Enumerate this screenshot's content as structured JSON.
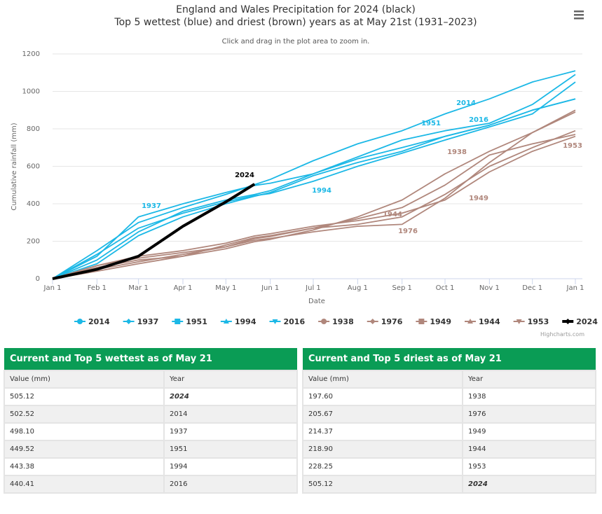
{
  "chart_data": {
    "type": "line",
    "title": [
      "England and Wales Precipitation for 2024 (black)",
      "Top 5 wettest (blue) and driest (brown) years as at May 21st (1931–2023)"
    ],
    "subtitle": "Click and drag in the plot area to zoom in.",
    "x_label": "Date",
    "y_label": "Cumulative rainfall (mm)",
    "x": [
      0,
      31,
      60,
      91,
      121,
      141,
      152,
      182,
      213,
      244,
      274,
      305,
      335,
      365
    ],
    "xlim": [
      0,
      365
    ],
    "xticks": [
      {
        "value": 0,
        "label": "Jan 1"
      },
      {
        "value": 31,
        "label": "Feb 1"
      },
      {
        "value": 60,
        "label": "Mar 1"
      },
      {
        "value": 91,
        "label": "Apr 1"
      },
      {
        "value": 121,
        "label": "May 1"
      },
      {
        "value": 152,
        "label": "Jun 1"
      },
      {
        "value": 182,
        "label": "Jul 1"
      },
      {
        "value": 213,
        "label": "Aug 1"
      },
      {
        "value": 244,
        "label": "Sep 1"
      },
      {
        "value": 274,
        "label": "Oct 1"
      },
      {
        "value": 305,
        "label": "Nov 1"
      },
      {
        "value": 335,
        "label": "Dec 1"
      },
      {
        "value": 365,
        "label": "Jan 1"
      }
    ],
    "ylim": [
      0,
      1200
    ],
    "yticks": [
      0,
      200,
      400,
      600,
      800,
      1000,
      1200
    ],
    "grid": true,
    "series": [
      {
        "name": "2014",
        "color": "#1cb8e6",
        "symbol": "circle",
        "values": [
          0,
          150,
          300,
          380,
          450,
          502.52,
          530,
          630,
          720,
          790,
          880,
          960,
          1050,
          1110
        ]
      },
      {
        "name": "1937",
        "color": "#1cb8e6",
        "symbol": "diamond",
        "values": [
          0,
          120,
          330,
          400,
          460,
          498.1,
          510,
          560,
          640,
          700,
          760,
          820,
          900,
          960
        ]
      },
      {
        "name": "1951",
        "color": "#1cb8e6",
        "symbol": "square",
        "values": [
          0,
          100,
          250,
          360,
          420,
          449.52,
          470,
          560,
          650,
          740,
          790,
          830,
          930,
          1090
        ]
      },
      {
        "name": "1994",
        "color": "#1cb8e6",
        "symbol": "triangle",
        "values": [
          0,
          130,
          270,
          350,
          410,
          443.38,
          455,
          520,
          600,
          670,
          740,
          810,
          880,
          1050
        ]
      },
      {
        "name": "2016",
        "color": "#1cb8e6",
        "symbol": "triangle-down",
        "values": [
          0,
          80,
          230,
          330,
          400,
          440.41,
          460,
          550,
          620,
          680,
          760,
          820,
          900,
          960
        ]
      },
      {
        "name": "1938",
        "color": "#b0877c",
        "symbol": "circle",
        "values": [
          0,
          60,
          100,
          120,
          160,
          197.6,
          210,
          260,
          330,
          420,
          560,
          680,
          780,
          890
        ]
      },
      {
        "name": "1976",
        "color": "#b0877c",
        "symbol": "diamond",
        "values": [
          0,
          70,
          110,
          140,
          170,
          205.67,
          215,
          250,
          280,
          290,
          430,
          620,
          780,
          900
        ]
      },
      {
        "name": "1949",
        "color": "#b0877c",
        "symbol": "square",
        "values": [
          0,
          50,
          90,
          130,
          170,
          214.37,
          225,
          270,
          290,
          330,
          450,
          600,
          700,
          790
        ]
      },
      {
        "name": "1944",
        "color": "#b0877c",
        "symbol": "triangle",
        "values": [
          0,
          40,
          80,
          120,
          180,
          218.9,
          230,
          270,
          320,
          380,
          500,
          660,
          720,
          770
        ]
      },
      {
        "name": "1953",
        "color": "#b0877c",
        "symbol": "triangle-down",
        "values": [
          0,
          70,
          120,
          150,
          190,
          228.25,
          240,
          280,
          310,
          350,
          420,
          570,
          680,
          760
        ]
      },
      {
        "name": "2024",
        "color": "#000000",
        "symbol": "diamond",
        "values": [
          0,
          50,
          120,
          280,
          410,
          505.12,
          null,
          null,
          null,
          null,
          null,
          null,
          null,
          null
        ]
      }
    ],
    "credit": "Highcharts.com"
  },
  "tables": [
    {
      "title": "Current and Top 5 wettest as of May 21",
      "columns": [
        "Value (mm)",
        "Year"
      ],
      "bold_row": 0,
      "rows": [
        [
          "505.12",
          "2024"
        ],
        [
          "502.52",
          "2014"
        ],
        [
          "498.10",
          "1937"
        ],
        [
          "449.52",
          "1951"
        ],
        [
          "443.38",
          "1994"
        ],
        [
          "440.41",
          "2016"
        ]
      ]
    },
    {
      "title": "Current and Top 5 driest as of May 21",
      "columns": [
        "Value (mm)",
        "Year"
      ],
      "bold_row": 5,
      "rows": [
        [
          "197.60",
          "1938"
        ],
        [
          "205.67",
          "1976"
        ],
        [
          "214.37",
          "1949"
        ],
        [
          "218.90",
          "1944"
        ],
        [
          "228.25",
          "1953"
        ],
        [
          "505.12",
          "2024"
        ]
      ]
    }
  ]
}
